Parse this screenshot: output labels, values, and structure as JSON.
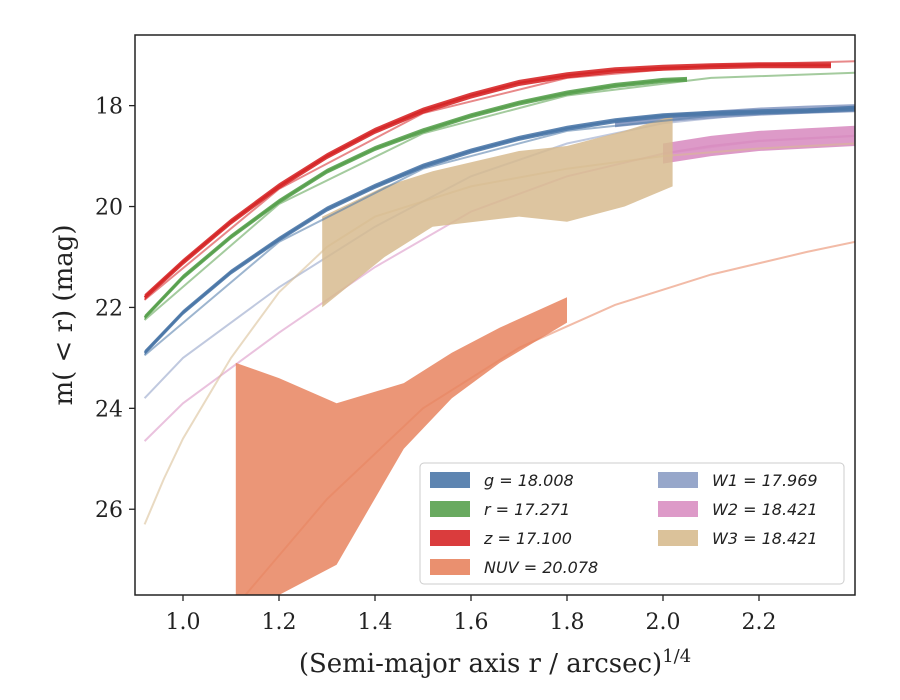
{
  "chart_data": {
    "type": "line",
    "xlabel": "(Semi-major axis r / arcsec)",
    "xlabel_exponent": "1/4",
    "ylabel": "m( < r) (mag)",
    "xlim": [
      0.9,
      2.4
    ],
    "ylim": [
      27.7,
      16.6
    ],
    "y_inverted": true,
    "x_ticks": [
      "1.0",
      "1.2",
      "1.4",
      "1.6",
      "1.8",
      "2.0",
      "2.2"
    ],
    "y_ticks": [
      "18",
      "20",
      "22",
      "24",
      "26"
    ],
    "grid": false,
    "legend_position": "bottom-right",
    "legend_columns": 2,
    "series": [
      {
        "name": "g = 18.008",
        "color": "#4c78a8",
        "x": [
          0.92,
          1.0,
          1.1,
          1.2,
          1.3,
          1.4,
          1.5,
          1.6,
          1.7,
          1.8,
          1.9,
          2.0,
          2.1,
          2.2,
          2.3,
          2.4
        ],
        "y": [
          22.9,
          22.1,
          21.3,
          20.65,
          20.05,
          19.6,
          19.2,
          18.9,
          18.65,
          18.45,
          18.3,
          18.2,
          18.15,
          18.12,
          18.1,
          18.05
        ],
        "band_width": 0.05,
        "model_curve": {
          "x": [
            0.92,
            1.2,
            1.5,
            1.8,
            2.1,
            2.4
          ],
          "y": [
            22.95,
            20.7,
            19.25,
            18.5,
            18.2,
            18.1
          ]
        }
      },
      {
        "name": "r = 17.271",
        "color": "#59a14f",
        "x": [
          0.92,
          1.0,
          1.1,
          1.2,
          1.3,
          1.4,
          1.5,
          1.6,
          1.7,
          1.8,
          1.9,
          2.0,
          2.05
        ],
        "y": [
          22.2,
          21.4,
          20.6,
          19.9,
          19.3,
          18.85,
          18.5,
          18.2,
          17.95,
          17.75,
          17.6,
          17.5,
          17.48
        ],
        "band_width": 0.05,
        "model_curve": {
          "x": [
            0.92,
            1.2,
            1.5,
            1.8,
            2.1,
            2.4
          ],
          "y": [
            22.25,
            19.95,
            18.55,
            17.8,
            17.45,
            17.35
          ]
        }
      },
      {
        "name": "z = 17.100",
        "color": "#d62728",
        "x": [
          0.92,
          1.0,
          1.1,
          1.2,
          1.3,
          1.4,
          1.5,
          1.6,
          1.7,
          1.8,
          1.9,
          2.0,
          2.1,
          2.2,
          2.3,
          2.35
        ],
        "y": [
          21.8,
          21.1,
          20.3,
          19.6,
          19.0,
          18.5,
          18.1,
          17.8,
          17.55,
          17.4,
          17.3,
          17.25,
          17.22,
          17.2,
          17.2,
          17.2
        ],
        "band_width": 0.06,
        "model_curve": {
          "x": [
            0.92,
            1.2,
            1.5,
            1.8,
            2.1,
            2.4
          ],
          "y": [
            21.85,
            19.65,
            18.15,
            17.45,
            17.2,
            17.12
          ]
        }
      },
      {
        "name": "NUV = 20.078",
        "color": "#e8845f",
        "band_x": [
          1.11,
          1.2,
          1.32,
          1.46,
          1.56,
          1.66,
          1.8
        ],
        "band_upper": [
          23.1,
          23.4,
          23.9,
          23.5,
          22.9,
          22.4,
          21.8
        ],
        "band_lower": [
          27.7,
          27.7,
          27.1,
          24.8,
          23.8,
          23.1,
          22.3
        ],
        "model_curve": {
          "x": [
            1.13,
            1.3,
            1.5,
            1.7,
            1.9,
            2.1,
            2.3,
            2.4
          ],
          "y": [
            27.7,
            25.8,
            24.0,
            22.8,
            21.95,
            21.35,
            20.9,
            20.7
          ]
        }
      },
      {
        "name": "W1 = 17.969",
        "color": "#8c9dc4",
        "x": [
          1.9,
          2.0,
          2.1,
          2.2,
          2.3,
          2.4
        ],
        "y": [
          18.35,
          18.25,
          18.18,
          18.12,
          18.08,
          18.05
        ],
        "band_width": 0.08,
        "model_curve": {
          "x": [
            0.92,
            1.0,
            1.2,
            1.4,
            1.6,
            1.8,
            2.0,
            2.2,
            2.4
          ],
          "y": [
            23.8,
            23.0,
            21.6,
            20.4,
            19.4,
            18.75,
            18.35,
            18.15,
            18.05
          ]
        }
      },
      {
        "name": "W2 = 18.421",
        "color": "#d98fc2",
        "x": [
          2.0,
          2.1,
          2.2,
          2.3,
          2.4
        ],
        "y": [
          18.95,
          18.8,
          18.7,
          18.65,
          18.6
        ],
        "band_width": 0.2,
        "model_curve": {
          "x": [
            0.92,
            1.0,
            1.2,
            1.4,
            1.6,
            1.8,
            2.0,
            2.2,
            2.4
          ],
          "y": [
            24.65,
            23.9,
            22.5,
            21.2,
            20.1,
            19.4,
            18.95,
            18.7,
            18.6
          ]
        }
      },
      {
        "name": "W3 = 18.421",
        "color": "#d7bb8f",
        "band_x": [
          1.29,
          1.42,
          1.52,
          1.7,
          1.8,
          1.92,
          2.02
        ],
        "band_upper": [
          20.2,
          19.6,
          19.3,
          18.9,
          18.8,
          18.5,
          18.2
        ],
        "band_lower": [
          22.0,
          21.0,
          20.4,
          20.2,
          20.3,
          20.0,
          19.6
        ],
        "model_curve": {
          "x": [
            0.92,
            0.96,
            1.0,
            1.1,
            1.2,
            1.3,
            1.4,
            1.6,
            1.8,
            2.0,
            2.2,
            2.4
          ],
          "y": [
            26.3,
            25.4,
            24.6,
            23.0,
            21.7,
            20.8,
            20.2,
            19.6,
            19.25,
            19.0,
            18.85,
            18.75
          ]
        }
      }
    ]
  }
}
